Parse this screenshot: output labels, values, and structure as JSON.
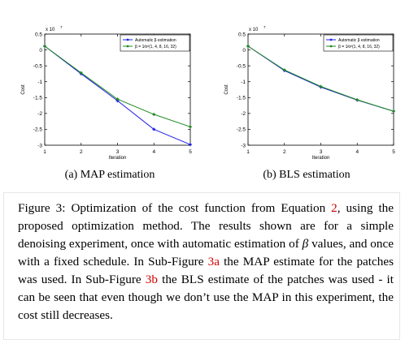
{
  "chart_data": [
    {
      "type": "line",
      "id": "map",
      "subcaption": "(a) MAP estimation",
      "x": [
        1,
        2,
        3,
        4,
        5
      ],
      "xlabel": "Iteration",
      "ylabel": "Cost",
      "exponent_label": "x 10",
      "exponent_power": "7",
      "xlim": [
        1,
        5
      ],
      "ylim": [
        -3,
        0.5
      ],
      "xticks": [
        "1",
        "2",
        "3",
        "4",
        "5"
      ],
      "yticks": [
        {
          "v": 0.5,
          "label": "0.5"
        },
        {
          "v": 0,
          "label": "0"
        },
        {
          "v": -0.5,
          "label": "-0.5"
        },
        {
          "v": -1,
          "label": "-1"
        },
        {
          "v": -1.5,
          "label": "-1.5"
        },
        {
          "v": -2,
          "label": "-2"
        },
        {
          "v": -2.5,
          "label": "-2.5"
        },
        {
          "v": -3,
          "label": "-3"
        }
      ],
      "legend_position": "top-right",
      "series": [
        {
          "name": "Automatic β estimation",
          "color": "#1f1fe6",
          "values": [
            0.12,
            -0.75,
            -1.6,
            -2.5,
            -2.98
          ]
        },
        {
          "name": "β = 1⁄σ²(1, 4, 8, 16, 32)",
          "color": "#1f8a1f",
          "values": [
            0.12,
            -0.72,
            -1.55,
            -2.03,
            -2.42
          ]
        }
      ]
    },
    {
      "type": "line",
      "id": "bls",
      "subcaption": "(b) BLS estimation",
      "x": [
        1,
        2,
        3,
        4,
        5
      ],
      "xlabel": "Iteration",
      "ylabel": "Cost",
      "exponent_label": "x 10",
      "exponent_power": "7",
      "xlim": [
        1,
        5
      ],
      "ylim": [
        -3,
        0.5
      ],
      "xticks": [
        "1",
        "2",
        "3",
        "4",
        "5"
      ],
      "yticks": [
        {
          "v": 0.5,
          "label": "0.5"
        },
        {
          "v": 0,
          "label": "0"
        },
        {
          "v": -0.5,
          "label": "-0.5"
        },
        {
          "v": -1,
          "label": "-1"
        },
        {
          "v": -1.5,
          "label": "-1.5"
        },
        {
          "v": -2,
          "label": "-2"
        },
        {
          "v": -2.5,
          "label": "-2.5"
        },
        {
          "v": -3,
          "label": "-3"
        }
      ],
      "legend_position": "top-right",
      "series": [
        {
          "name": "Automatic β estimation",
          "color": "#1f1fe6",
          "values": [
            0.12,
            -0.65,
            -1.17,
            -1.58,
            -1.93
          ]
        },
        {
          "name": "β = 1⁄σ²(1, 4, 8, 16, 32)",
          "color": "#1f8a1f",
          "values": [
            0.12,
            -0.63,
            -1.15,
            -1.57,
            -1.93
          ]
        }
      ]
    }
  ],
  "caption": {
    "label": "Figure 3:",
    "part1": " Optimization of the cost function from Equation ",
    "ref_eq": "2",
    "part2": ", using the proposed optimization method. The results shown are for a simple denoising experiment, once with automatic estimation of ",
    "beta": "β",
    "part3": " values, and once with a fixed schedule. In Sub-Figure ",
    "ref_a": "3a",
    "part4": " the MAP estimate for the patches was used. In Sub-Figure ",
    "ref_b": "3b",
    "part5": " the BLS estimate of the patches was used - it can be seen that even though we don’t use the MAP in this experiment, the cost still decreases."
  }
}
